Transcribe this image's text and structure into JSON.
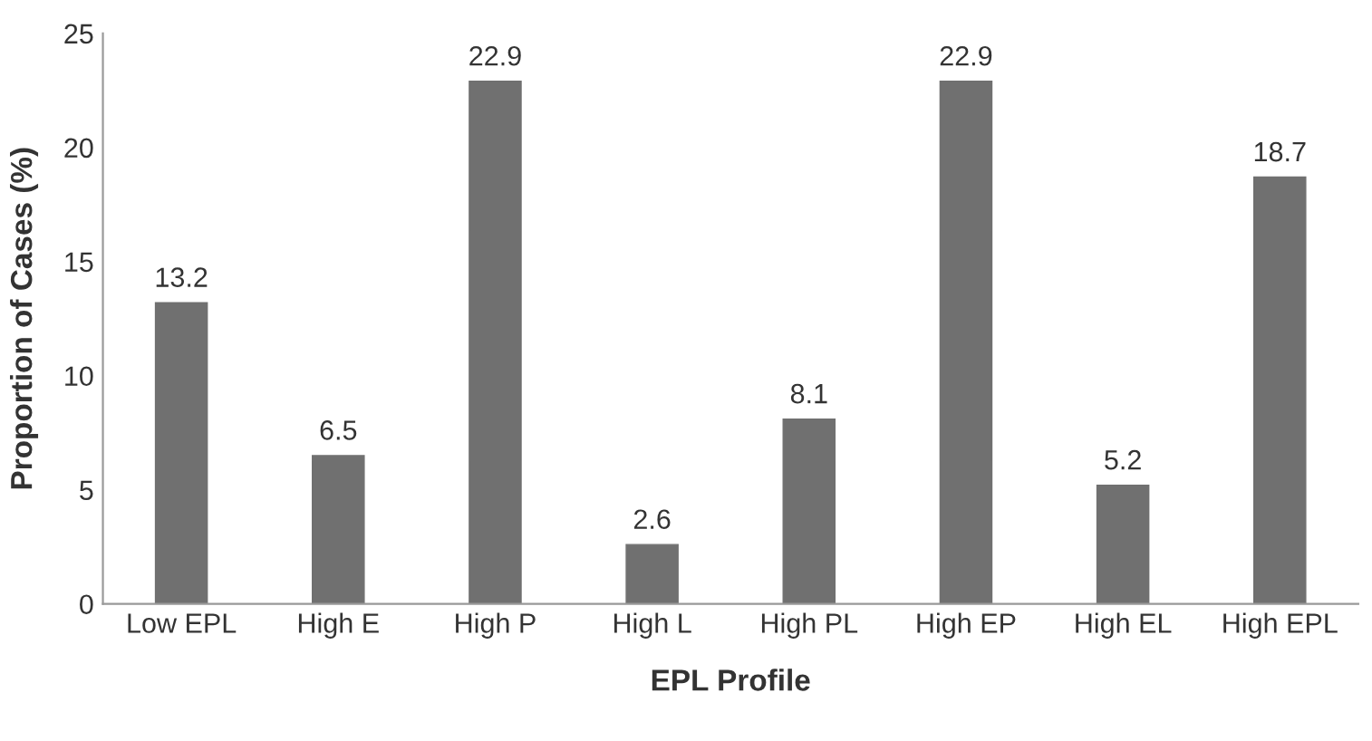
{
  "chart_data": {
    "type": "bar",
    "xlabel": "EPL Profile",
    "ylabel": "Proportion of Cases (%)",
    "categories": [
      "Low EPL",
      "High E",
      "High P",
      "High L",
      "High PL",
      "High EP",
      "High EL",
      "High EPL"
    ],
    "values": [
      13.2,
      6.5,
      22.9,
      2.6,
      8.1,
      22.9,
      5.2,
      18.7
    ],
    "color": "#707070",
    "ylim": [
      0,
      25
    ],
    "yticks": [
      0,
      5,
      10,
      15,
      20,
      25
    ],
    "grid": false,
    "data_labels": true
  }
}
